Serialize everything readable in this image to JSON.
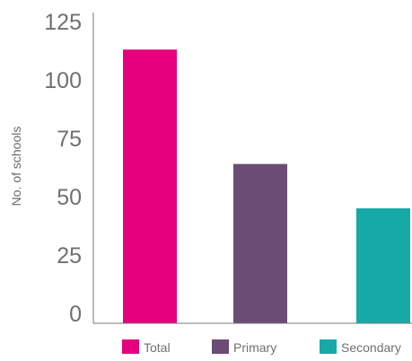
{
  "chart_data": {
    "type": "bar",
    "title": "",
    "xlabel": "",
    "ylabel": "No. of schools",
    "categories": [
      "Total",
      "Primary",
      "Secondary"
    ],
    "values": [
      113,
      64,
      45
    ],
    "colors": [
      "#e6007e",
      "#6b4c75",
      "#15aaa7"
    ],
    "ylim": [
      0,
      125
    ],
    "yticks": [
      0,
      25,
      50,
      75,
      100,
      125
    ],
    "grid": false,
    "legend": {
      "position": "bottom",
      "items": [
        "Total",
        "Primary",
        "Secondary"
      ]
    }
  }
}
